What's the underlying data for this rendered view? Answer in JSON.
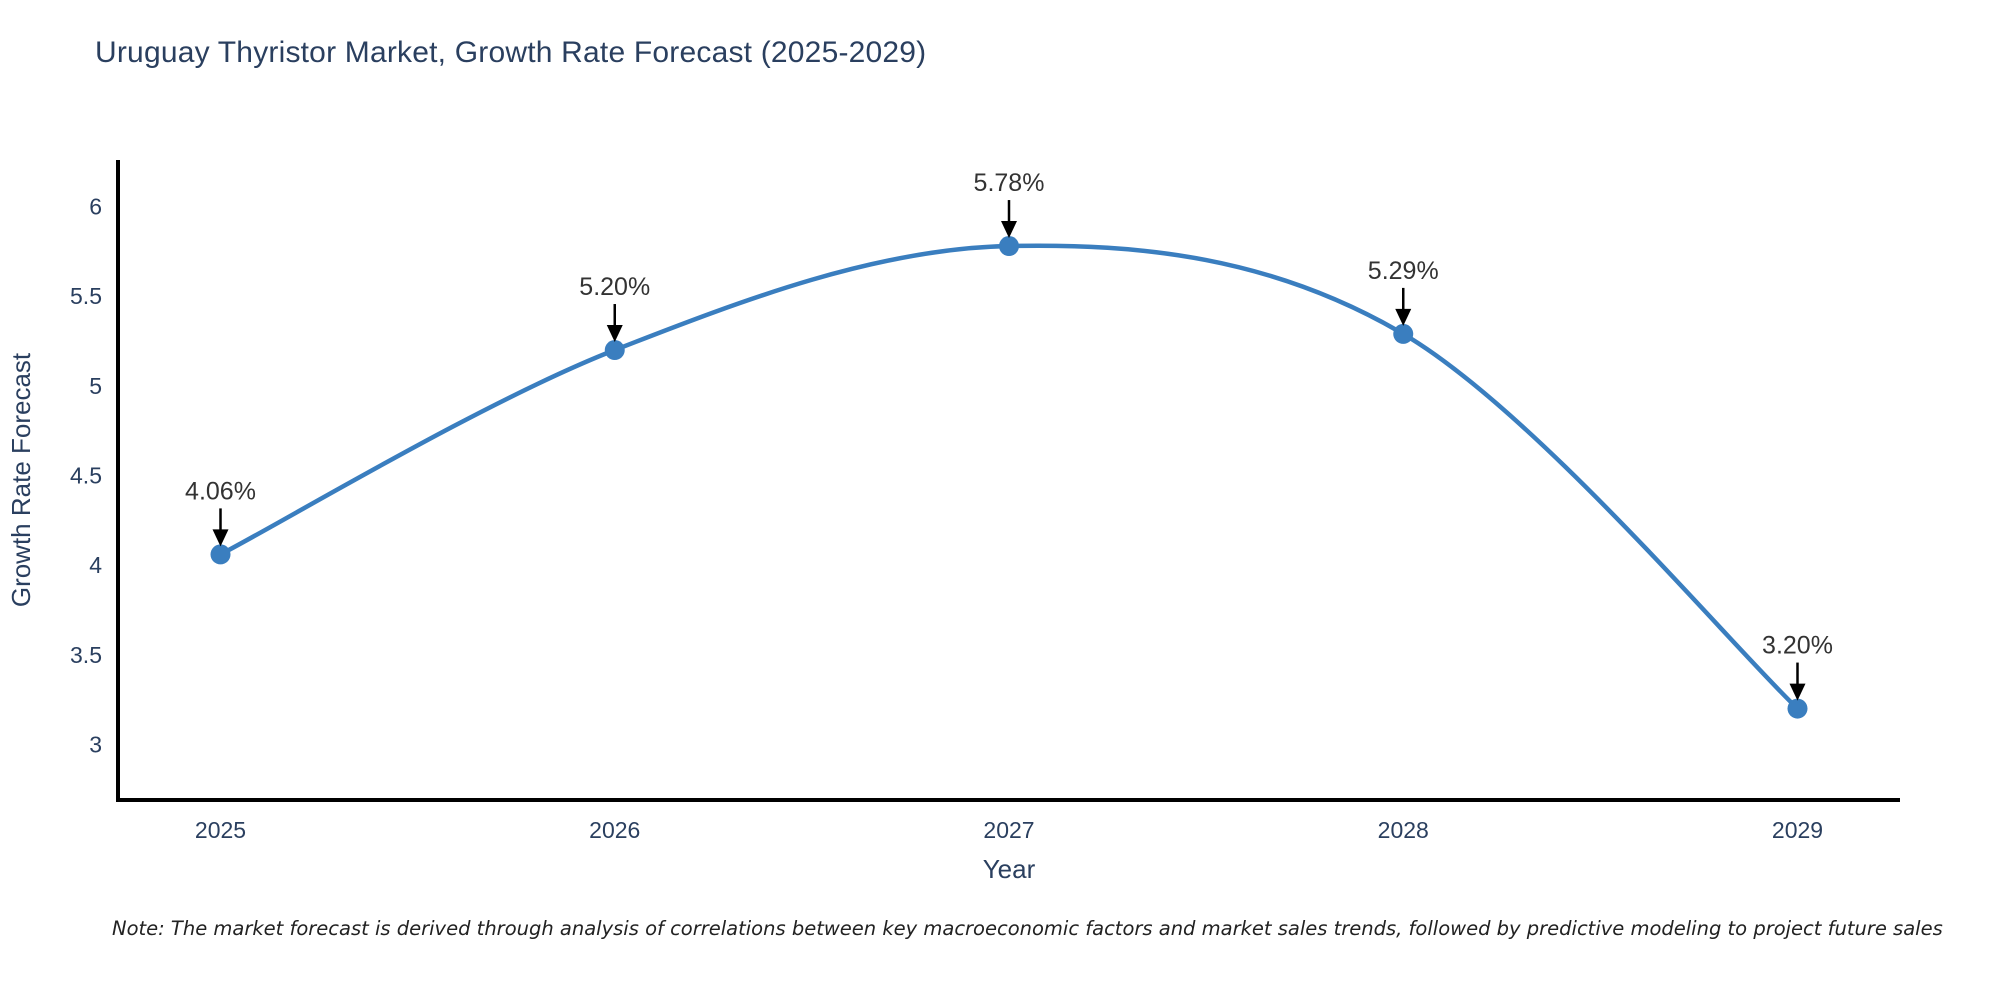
{
  "page": {
    "note": "Note: The market forecast is derived through analysis of correlations between key macroeconomic factors and market sales trends, followed by predictive modeling to project future sales"
  },
  "chart_data": {
    "type": "line",
    "title": "Uruguay Thyristor Market, Growth Rate Forecast (2025-2029)",
    "xlabel": "Year",
    "ylabel": "Growth Rate Forecast",
    "categories": [
      2025,
      2026,
      2027,
      2028,
      2029
    ],
    "series": [
      {
        "name": "Growth Rate Forecast",
        "values": [
          4.06,
          5.2,
          5.78,
          5.29,
          3.2
        ]
      }
    ],
    "point_labels": [
      "4.06%",
      "5.20%",
      "5.78%",
      "5.29%",
      "3.20%"
    ],
    "yticks": [
      3,
      3.5,
      4,
      4.5,
      5,
      5.5,
      6
    ],
    "ylim": [
      2.69,
      6.26
    ],
    "xlim": [
      2024.74,
      2029.26
    ],
    "grid": false,
    "legend": "none",
    "curve": "spline",
    "line_color": "#3a7ebf",
    "marker_color": "#3a7ebf",
    "axis_color": "#000000",
    "tick_color": "#2a3f5f",
    "title_color": "#2a3f5f",
    "annotation_color": "#333333",
    "arrow_color": "#000000"
  }
}
